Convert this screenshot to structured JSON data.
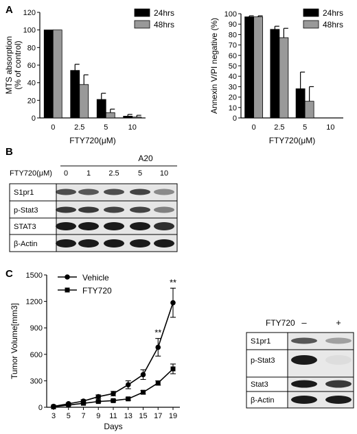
{
  "panels": {
    "a": "A",
    "b": "B",
    "c": "C"
  },
  "chart_data": [
    {
      "id": "mts",
      "type": "bar",
      "ylabel_lines": [
        "MTS absorption",
        "(% of control)"
      ],
      "xlabel": "FTY720(μM)",
      "categories": [
        "0",
        "2.5",
        "5",
        "10"
      ],
      "ylim": [
        0,
        120
      ],
      "yticks": [
        0,
        20,
        40,
        60,
        80,
        100,
        120
      ],
      "legend_position": "top-right",
      "series": [
        {
          "name": "24hrs",
          "color": "#000000",
          "values": [
            100,
            54,
            21,
            2
          ],
          "errors": [
            0,
            7,
            7,
            2
          ]
        },
        {
          "name": "48hrs",
          "color": "#999999",
          "values": [
            100,
            38,
            6,
            1
          ],
          "errors": [
            0,
            11,
            4,
            2
          ]
        }
      ]
    },
    {
      "id": "annexin",
      "type": "bar",
      "ylabel": "Annexin V/PI negative (%)",
      "xlabel": "FTY720(μM)",
      "categories": [
        "0",
        "2.5",
        "5",
        "10"
      ],
      "ylim": [
        0,
        100
      ],
      "yticks": [
        0,
        10,
        20,
        30,
        40,
        50,
        60,
        70,
        80,
        90,
        100
      ],
      "legend_position": "top-right",
      "series": [
        {
          "name": "24hrs",
          "color": "#000000",
          "values": [
            97,
            85,
            28,
            0
          ],
          "errors": [
            1,
            3,
            16,
            0
          ]
        },
        {
          "name": "48hrs",
          "color": "#999999",
          "values": [
            97,
            77,
            16,
            0
          ],
          "errors": [
            1,
            9,
            14,
            0
          ]
        }
      ]
    },
    {
      "id": "tumor",
      "type": "line",
      "ylabel": "Tumor Volume[mm3]",
      "xlabel": "Days",
      "x": [
        3,
        5,
        7,
        9,
        11,
        13,
        15,
        17,
        19
      ],
      "ylim": [
        0,
        1500
      ],
      "yticks": [
        0,
        300,
        600,
        900,
        1200,
        1500
      ],
      "legend_position": "top-left",
      "annotations": [
        {
          "x": 17,
          "text": "**"
        },
        {
          "x": 19,
          "text": "**"
        }
      ],
      "series": [
        {
          "name": "Vehicle",
          "marker": "circle",
          "values": [
            10,
            40,
            70,
            120,
            155,
            255,
            370,
            680,
            1185
          ],
          "errors": [
            5,
            8,
            15,
            20,
            25,
            45,
            55,
            100,
            165
          ]
        },
        {
          "name": "FTY720",
          "marker": "square",
          "values": [
            5,
            25,
            45,
            65,
            75,
            95,
            170,
            275,
            435
          ],
          "errors": [
            3,
            5,
            8,
            10,
            12,
            15,
            20,
            25,
            55
          ]
        }
      ]
    }
  ],
  "blot_b": {
    "cell_line": "A20",
    "treatment_label": "FTY720(μM)",
    "doses": [
      "0",
      "1",
      "2.5",
      "5",
      "10"
    ],
    "rows": [
      "S1pr1",
      "p-Stat3",
      "STAT3",
      "β-Actin"
    ]
  },
  "blot_c": {
    "treatment_label": "FTY720",
    "conditions": [
      "–",
      "+"
    ],
    "rows": [
      "S1pr1",
      "p-Stat3",
      "Stat3",
      "β-Actin"
    ]
  }
}
